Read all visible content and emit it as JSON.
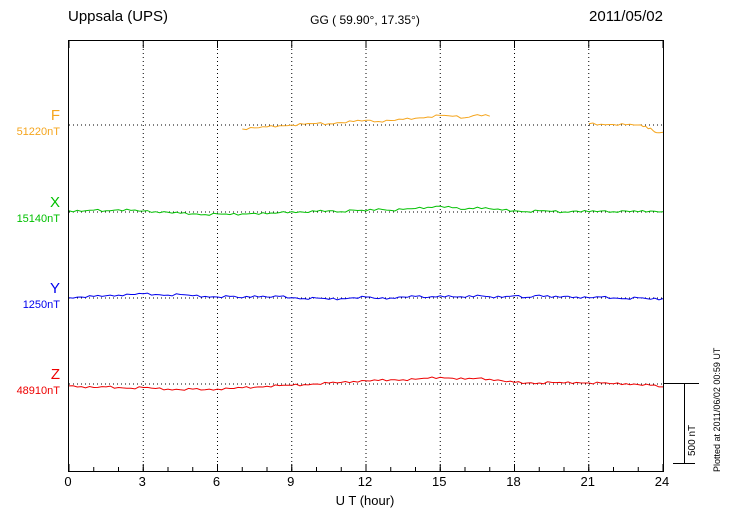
{
  "header": {
    "station": "Uppsala (UPS)",
    "coords": "GG ( 59.90°,  17.35°)",
    "date": "2011/05/02"
  },
  "axis": {
    "xlabel": "U T (hour)",
    "tick_hours": [
      0,
      3,
      6,
      9,
      12,
      15,
      18,
      21,
      24
    ],
    "xmin": 0,
    "xmax": 24
  },
  "scalebar": {
    "label": "500 nT",
    "nT": 500
  },
  "footer_note": "Plotted at 2011/06/02 00:59 UT",
  "chart_data": {
    "type": "line",
    "title": "Uppsala (UPS) magnetogram 2011/05/02",
    "xlabel": "U T (hour)",
    "x_range": [
      0,
      24
    ],
    "grid": "dotted vertical every 3 h, dotted baseline per trace",
    "legend_position": "left-of-plot baseline labels",
    "scale_nT_per_bar": 500,
    "series": [
      {
        "name": "F",
        "baseline_label": "51220nT",
        "baseline_nT": 51220,
        "color": "#f5a51d",
        "units": "nT offset from baseline",
        "segments": [
          [
            [
              7,
              -25
            ],
            [
              7.5,
              -18
            ],
            [
              8,
              -12
            ],
            [
              8.5,
              -5
            ],
            [
              9,
              0
            ],
            [
              9.5,
              5
            ],
            [
              10,
              10
            ],
            [
              10.5,
              8
            ],
            [
              11,
              15
            ],
            [
              11.5,
              22
            ],
            [
              12,
              30
            ],
            [
              12.5,
              22
            ],
            [
              13,
              28
            ],
            [
              13.5,
              35
            ],
            [
              14,
              42
            ],
            [
              14.5,
              50
            ],
            [
              15,
              60
            ],
            [
              15.5,
              55
            ],
            [
              16,
              45
            ],
            [
              16.5,
              65
            ],
            [
              17,
              55
            ]
          ],
          [
            [
              21,
              8
            ],
            [
              21.5,
              5
            ],
            [
              22,
              3
            ],
            [
              22.5,
              2
            ],
            [
              23,
              0
            ],
            [
              23.3,
              -8
            ],
            [
              23.6,
              -35
            ],
            [
              23.8,
              -48
            ],
            [
              24,
              -45
            ]
          ]
        ]
      },
      {
        "name": "X",
        "baseline_label": "15140nT",
        "baseline_nT": 15140,
        "color": "#00c000",
        "units": "nT offset from baseline",
        "segments": [
          [
            [
              0,
              8
            ],
            [
              0.5,
              4
            ],
            [
              1,
              12
            ],
            [
              1.5,
              8
            ],
            [
              2,
              14
            ],
            [
              2.5,
              10
            ],
            [
              3,
              6
            ],
            [
              3.5,
              2
            ],
            [
              4,
              -2
            ],
            [
              4.5,
              -8
            ],
            [
              5,
              -12
            ],
            [
              5.5,
              -16
            ],
            [
              6,
              -12
            ],
            [
              6.5,
              -16
            ],
            [
              7,
              -12
            ],
            [
              7.5,
              -8
            ],
            [
              8,
              -12
            ],
            [
              8.5,
              -4
            ],
            [
              9,
              2
            ],
            [
              9.5,
              -2
            ],
            [
              10,
              4
            ],
            [
              10.5,
              8
            ],
            [
              11,
              2
            ],
            [
              11.5,
              12
            ],
            [
              12,
              6
            ],
            [
              12.5,
              20
            ],
            [
              13,
              10
            ],
            [
              13.5,
              16
            ],
            [
              14,
              22
            ],
            [
              14.5,
              30
            ],
            [
              15,
              36
            ],
            [
              15.5,
              26
            ],
            [
              16,
              16
            ],
            [
              16.5,
              30
            ],
            [
              17,
              20
            ],
            [
              17.5,
              12
            ],
            [
              18,
              8
            ],
            [
              18.5,
              2
            ],
            [
              19,
              8
            ],
            [
              19.5,
              4
            ],
            [
              20,
              0
            ],
            [
              20.5,
              6
            ],
            [
              21,
              2
            ],
            [
              21.5,
              6
            ],
            [
              22,
              2
            ],
            [
              22.5,
              6
            ],
            [
              23,
              2
            ],
            [
              23.5,
              6
            ],
            [
              24,
              2
            ]
          ]
        ]
      },
      {
        "name": "Y",
        "baseline_label": "1250nT",
        "baseline_nT": 1250,
        "color": "#0000ee",
        "units": "nT offset from baseline",
        "segments": [
          [
            [
              0,
              2
            ],
            [
              0.5,
              6
            ],
            [
              1,
              10
            ],
            [
              1.5,
              14
            ],
            [
              2,
              18
            ],
            [
              2.5,
              22
            ],
            [
              3,
              26
            ],
            [
              3.5,
              22
            ],
            [
              4,
              18
            ],
            [
              4.5,
              22
            ],
            [
              5,
              14
            ],
            [
              5.5,
              10
            ],
            [
              6,
              6
            ],
            [
              6.5,
              10
            ],
            [
              7,
              2
            ],
            [
              7.5,
              14
            ],
            [
              8,
              6
            ],
            [
              8.5,
              10
            ],
            [
              9,
              2
            ],
            [
              9.5,
              -4
            ],
            [
              10,
              0
            ],
            [
              10.5,
              -8
            ],
            [
              11,
              -4
            ],
            [
              11.5,
              2
            ],
            [
              12,
              6
            ],
            [
              12.5,
              -4
            ],
            [
              13,
              0
            ],
            [
              13.5,
              6
            ],
            [
              14,
              10
            ],
            [
              14.5,
              4
            ],
            [
              15,
              14
            ],
            [
              15.5,
              8
            ],
            [
              16,
              4
            ],
            [
              16.5,
              18
            ],
            [
              17,
              8
            ],
            [
              17.5,
              4
            ],
            [
              18,
              14
            ],
            [
              18.5,
              4
            ],
            [
              19,
              18
            ],
            [
              19.5,
              4
            ],
            [
              20,
              10
            ],
            [
              20.5,
              6
            ],
            [
              21,
              2
            ],
            [
              21.5,
              6
            ],
            [
              22,
              0
            ],
            [
              22.5,
              -4
            ],
            [
              23,
              2
            ],
            [
              23.5,
              -8
            ],
            [
              24,
              -4
            ]
          ]
        ]
      },
      {
        "name": "Z",
        "baseline_label": "48910nT",
        "baseline_nT": 48910,
        "color": "#ee0000",
        "units": "nT offset from baseline",
        "segments": [
          [
            [
              0,
              -12
            ],
            [
              0.5,
              -16
            ],
            [
              1,
              -22
            ],
            [
              1.5,
              -18
            ],
            [
              2,
              -22
            ],
            [
              2.5,
              -26
            ],
            [
              3,
              -22
            ],
            [
              3.5,
              -28
            ],
            [
              4,
              -32
            ],
            [
              4.5,
              -36
            ],
            [
              5,
              -32
            ],
            [
              5.5,
              -36
            ],
            [
              6,
              -32
            ],
            [
              6.5,
              -28
            ],
            [
              7,
              -24
            ],
            [
              7.5,
              -20
            ],
            [
              8,
              -14
            ],
            [
              8.5,
              -10
            ],
            [
              9,
              -8
            ],
            [
              9.5,
              -4
            ],
            [
              10,
              0
            ],
            [
              10.5,
              6
            ],
            [
              11,
              10
            ],
            [
              11.5,
              16
            ],
            [
              12,
              20
            ],
            [
              12.5,
              22
            ],
            [
              13,
              26
            ],
            [
              13.5,
              26
            ],
            [
              14,
              30
            ],
            [
              14.5,
              36
            ],
            [
              15,
              42
            ],
            [
              15.5,
              36
            ],
            [
              16,
              30
            ],
            [
              16.5,
              36
            ],
            [
              17,
              30
            ],
            [
              17.5,
              20
            ],
            [
              18,
              10
            ],
            [
              18.5,
              6
            ],
            [
              19,
              6
            ],
            [
              19.5,
              10
            ],
            [
              20,
              6
            ],
            [
              20.5,
              10
            ],
            [
              21,
              6
            ],
            [
              21.5,
              6
            ],
            [
              22,
              2
            ],
            [
              22.5,
              2
            ],
            [
              23,
              -4
            ],
            [
              23.5,
              -8
            ],
            [
              24,
              -18
            ]
          ]
        ]
      }
    ]
  }
}
